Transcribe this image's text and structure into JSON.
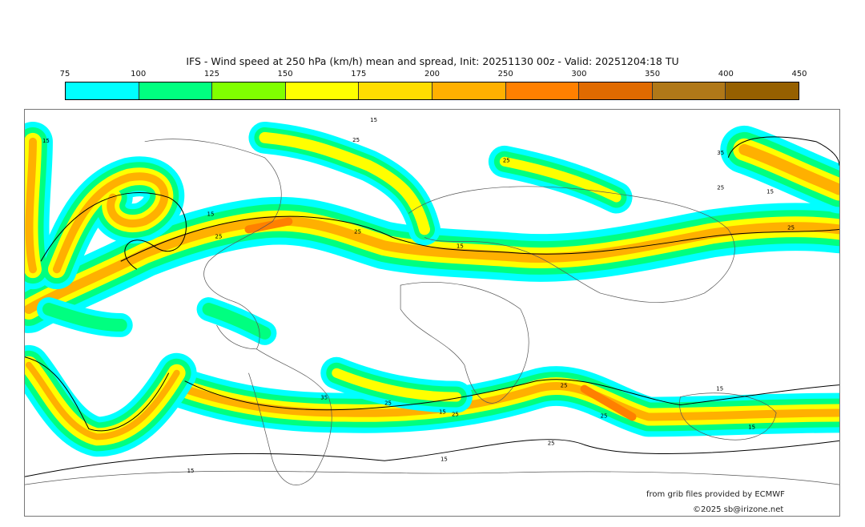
{
  "title": "IFS - Wind speed at 250 hPa (km/h) mean and spread, Init: 20251130 00z - Valid: 20251204:18 TU",
  "colorbar": {
    "ticks": [
      "75",
      "100",
      "125",
      "150",
      "175",
      "200",
      "250",
      "300",
      "350",
      "400",
      "450"
    ],
    "colors": [
      "#00ffff",
      "#00ff80",
      "#80ff00",
      "#ffff00",
      "#ffdd00",
      "#ffb000",
      "#ff8000",
      "#e06a00",
      "#b07818",
      "#966000"
    ]
  },
  "contour_labels": [
    "15",
    "25",
    "25",
    "35",
    "15",
    "15",
    "25",
    "15",
    "25",
    "25",
    "15",
    "25",
    "35",
    "25",
    "15",
    "25",
    "25",
    "25",
    "15",
    "15",
    "25",
    "15",
    "15",
    "5"
  ],
  "credits": {
    "source": "from grib files provided by ECMWF",
    "copyright": "©2025 sb@irizone.net"
  }
}
